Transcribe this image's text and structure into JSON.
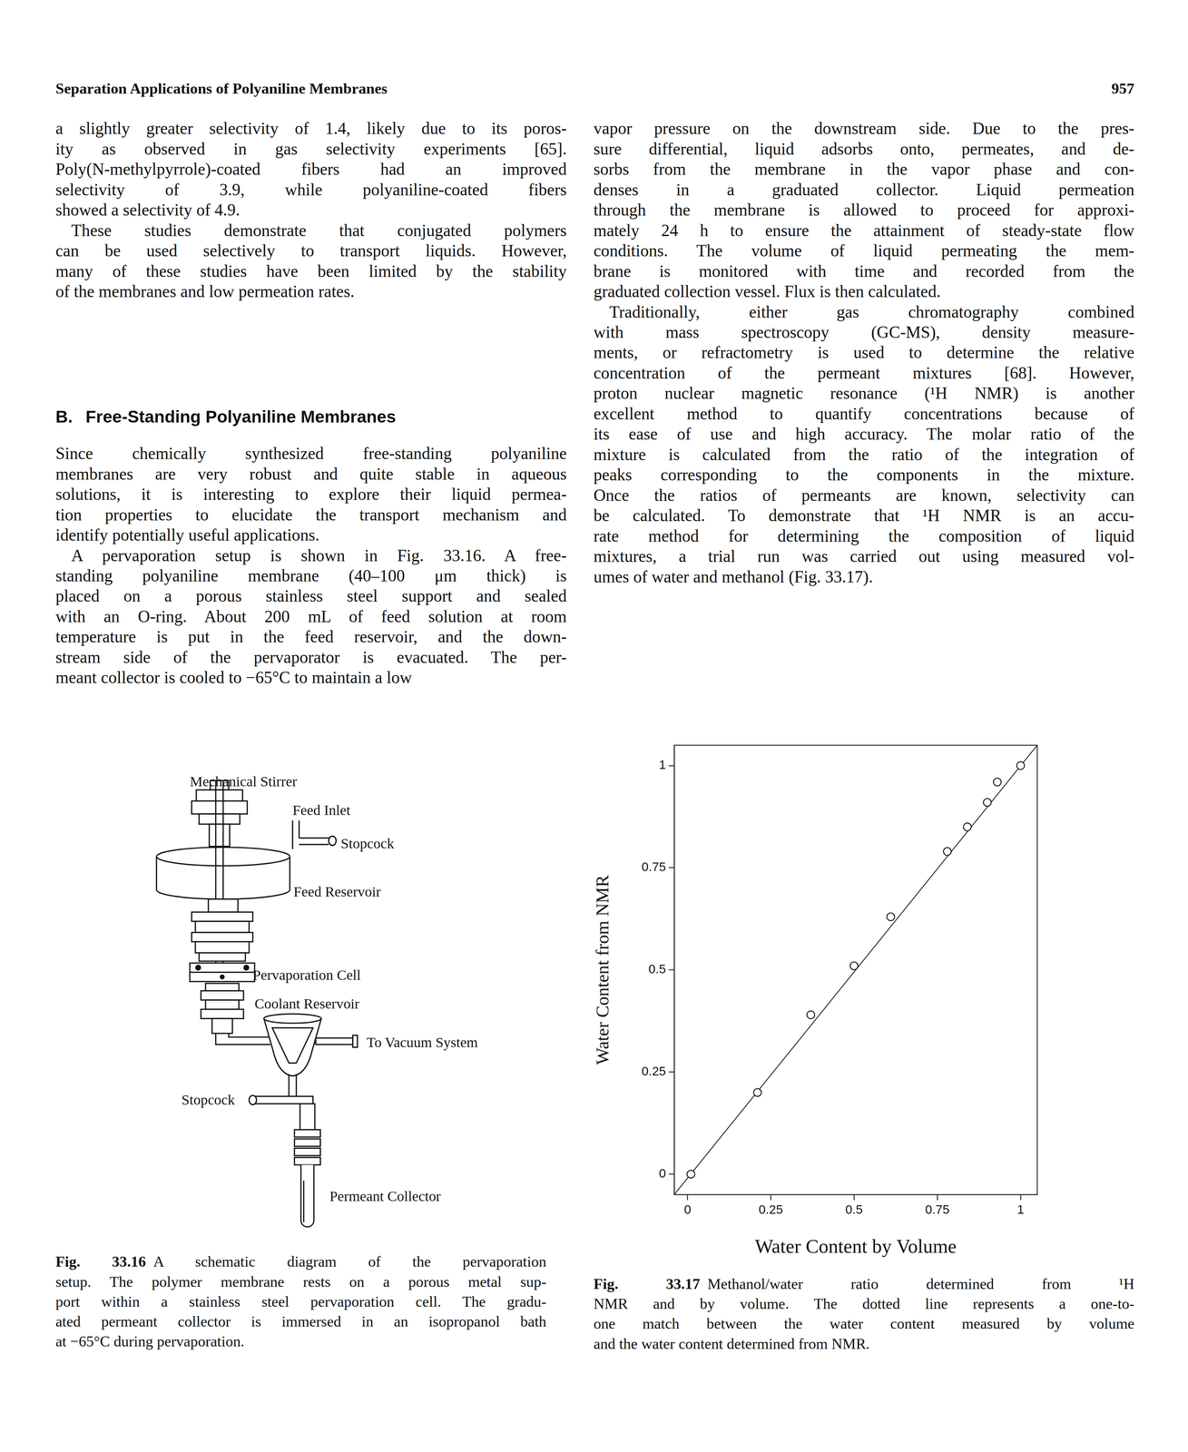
{
  "header": {
    "title": "Separation Applications of Polyaniline Membranes",
    "page": "957"
  },
  "columns": [
    {
      "blocks": [
        {
          "lines": [
            "a slightly greater selectivity of 1.4, likely due to its poros-",
            "ity as observed in gas selectivity experiments [65].",
            "Poly(N-methylpyrrole)-coated fibers had an improved",
            "selectivity of 3.9, while polyaniline-coated fibers",
            "showed a selectivity of 4.9."
          ]
        },
        {
          "lines": [
            "These studies demonstrate that conjugated polymers",
            "can be used selectively to transport liquids. However,",
            "many of these studies have been limited by the stability",
            "of the membranes and low permeation rates."
          ]
        },
        {
          "heading": {
            "label": "B.",
            "text": "Free-Standing Polyaniline Membranes"
          }
        },
        {
          "lines": [
            "Since chemically synthesized free-standing polyaniline",
            "membranes are very robust and quite stable in aqueous",
            "solutions, it is interesting to explore their liquid permea-",
            "tion properties to elucidate the transport mechanism and",
            "identify potentially useful applications."
          ]
        },
        {
          "lines": [
            "A pervaporation setup is shown in Fig. 33.16. A free-",
            "standing polyaniline membrane (40–100 μm thick) is",
            "placed on a porous stainless steel support and sealed",
            "with an O-ring. About 200 mL of feed solution at room",
            "temperature is put in the feed reservoir, and the down-",
            "stream side of the pervaporator is evacuated. The per-",
            "meant collector is cooled to −65°C to maintain a low"
          ]
        }
      ]
    },
    {
      "blocks": [
        {
          "lines": [
            "vapor pressure on the downstream side. Due to the pres-",
            "sure differential, liquid adsorbs onto, permeates, and de-",
            "sorbs from the membrane in the vapor phase and con-",
            "denses in a graduated collector. Liquid permeation",
            "through the membrane is allowed to proceed for approxi-",
            "mately 24 h to ensure the attainment of steady-state flow",
            "conditions. The volume of liquid permeating the mem-",
            "brane is monitored with time and recorded from the",
            "graduated collection vessel. Flux is then calculated."
          ]
        },
        {
          "lines": [
            "Traditionally, either gas chromatography combined",
            "with mass spectroscopy (GC-MS), density measure-",
            "ments, or refractometry is used to determine the relative",
            "concentration of the permeant mixtures [68]. However,",
            "proton nuclear magnetic resonance (¹H NMR) is another",
            "excellent method to quantify concentrations because of",
            "its ease of use and high accuracy. The molar ratio of the",
            "mixture is calculated from the ratio of the integration of",
            "peaks corresponding to the components in the mixture.",
            "Once the ratios of permeants are known, selectivity can",
            "be calculated. To demonstrate that ¹H NMR is an accu-",
            "rate method for determining the composition of liquid",
            "mixtures, a trial run was carried out using measured vol-",
            "umes of water and methanol (Fig. 33.17)."
          ]
        }
      ]
    }
  ],
  "figures": [
    {
      "label": "Fig. 33.16",
      "lines": [
        "A schematic diagram of the pervaporation",
        "setup. The polymer membrane rests on a porous metal sup-",
        "port within a stainless steel pervaporation cell. The gradu-",
        "ated permeant collector is immersed in an isopropanol bath",
        "at −65°C during pervaporation."
      ],
      "diagram": {
        "stirrer": "Mechanical Stirrer",
        "feed_inlet": "Feed Inlet",
        "stopcock_top": "Stopcock",
        "feed_reservoir": "Feed Reservoir",
        "cell": "Pervaporation Cell",
        "coolant": "Coolant Reservoir",
        "vacuum": "To Vacuum System",
        "stopcock_bottom": "Stopcock",
        "collector": "Permeant Collector"
      }
    },
    {
      "label": "Fig. 33.17",
      "lines": [
        "Methanol/water ratio determined from ¹H",
        "NMR and by volume. The dotted line represents a one-to-",
        "one match between the water content measured by volume",
        "and the water content determined from NMR."
      ]
    }
  ],
  "chart_data": {
    "type": "scatter",
    "x_label": "Water Content by Volume",
    "y_label": "Water Content from NMR",
    "series": [
      {
        "type": "scatter",
        "marker": "circle",
        "color": "#000000",
        "x": [
          0.01,
          0.21,
          0.37,
          0.5,
          0.61,
          0.78,
          0.84,
          0.9,
          0.93,
          1.0
        ],
        "values": [
          0.0,
          0.2,
          0.39,
          0.51,
          0.63,
          0.79,
          0.85,
          0.91,
          0.96,
          1.0
        ]
      },
      {
        "type": "line",
        "line_style": "solid",
        "color": "#000000",
        "x": [
          -0.04,
          1.05
        ],
        "values": [
          -0.05,
          1.05
        ]
      }
    ],
    "xlim": [
      -0.04,
      1.05
    ],
    "ylim": [
      -0.05,
      1.05
    ],
    "xticks": [
      0,
      0.25,
      0.5,
      0.75,
      1
    ],
    "yticks": [
      0,
      0.25,
      0.5,
      0.75,
      1
    ],
    "grid": false
  }
}
